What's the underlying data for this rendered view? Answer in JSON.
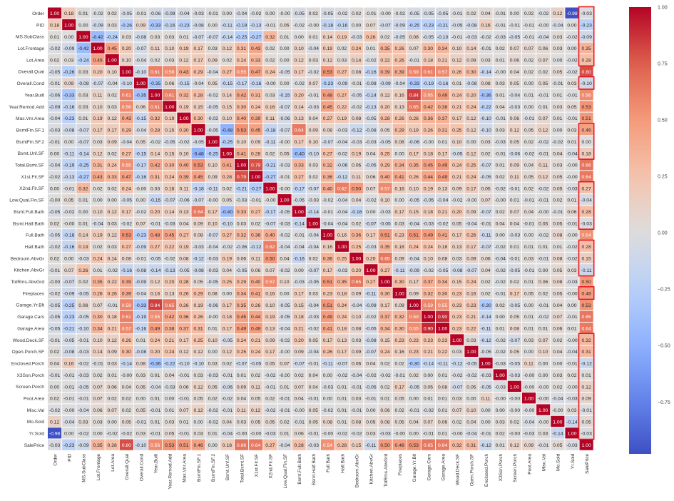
{
  "chart_data": {
    "type": "heatmap",
    "title": "",
    "variables": [
      "Order",
      "PID",
      "MS.SubClass",
      "Lot.Frontage",
      "Lot.Area",
      "Overall.Qual",
      "Overall.Cond",
      "Year.Built",
      "Year.Remod.Add",
      "Mas.Vnr.Area",
      "BsmtFin.SF.1",
      "BsmtFin.SF.2",
      "Bsmt.Unf.SF",
      "Total.Bsmt.SF",
      "X1st.Flr.SF",
      "X2nd.Flr.SF",
      "Low.Qual.Fin.SF",
      "Bsmt.Full.Bath",
      "Bsmt.Half.Bath",
      "Full.Bath",
      "Half.Bath",
      "Bedroom.AbvGr",
      "Kitchen.AbvGr",
      "TotRms.AbvGrd",
      "Fireplaces",
      "Garage.Yr.Blt",
      "Garage.Cars",
      "Garage.Area",
      "Wood.Deck.SF",
      "Open.Porch.SF",
      "Enclosed.Porch",
      "X3Ssn.Porch",
      "Screen.Porch",
      "Pool.Area",
      "Misc.Val",
      "Mo.Sold",
      "Yr.Sold",
      "SalePrice"
    ],
    "symmetric": true,
    "values_lower_triangle": [
      [
        1.0
      ],
      [
        0.18,
        1.0
      ],
      [
        0.01,
        0.0,
        1.0
      ],
      [
        -0.02,
        -0.09,
        -0.42,
        1.0
      ],
      [
        0.02,
        0.03,
        -0.24,
        0.45,
        1.0
      ],
      [
        -0.05,
        -0.26,
        0.03,
        0.2,
        0.1,
        1.0
      ],
      [
        -0.01,
        0.09,
        -0.08,
        -0.07,
        -0.04,
        -0.1,
        1.0
      ],
      [
        -0.06,
        -0.33,
        0.03,
        0.11,
        0.02,
        0.61,
        -0.35,
        1.0
      ],
      [
        -0.09,
        -0.16,
        0.03,
        0.1,
        0.03,
        0.56,
        0.06,
        0.61,
        1.0
      ],
      [
        -0.04,
        -0.23,
        0.01,
        0.19,
        0.12,
        0.43,
        -0.15,
        0.32,
        0.19,
        1.0
      ],
      [
        -0.03,
        -0.08,
        -0.07,
        0.17,
        0.17,
        0.29,
        -0.04,
        0.28,
        0.15,
        0.3,
        1.0
      ],
      [
        -0.01,
        0.0,
        -0.07,
        0.03,
        0.09,
        -0.04,
        0.05,
        -0.02,
        -0.05,
        -0.02,
        -0.05,
        1.0
      ],
      [
        0.0,
        -0.11,
        -0.14,
        0.12,
        0.02,
        0.27,
        -0.15,
        0.14,
        0.15,
        0.1,
        -0.48,
        -0.25,
        1.0
      ],
      [
        -0.04,
        -0.19,
        -0.25,
        0.31,
        0.24,
        0.55,
        -0.17,
        0.42,
        0.3,
        0.4,
        0.53,
        0.1,
        0.41,
        1.0
      ],
      [
        -0.02,
        -0.13,
        -0.27,
        0.43,
        0.33,
        0.47,
        -0.16,
        0.31,
        0.24,
        0.39,
        0.45,
        0.09,
        0.28,
        0.79,
        1.0
      ],
      [
        0.0,
        -0.01,
        0.32,
        0.02,
        0.02,
        0.24,
        -0.0,
        0.03,
        0.16,
        0.11,
        -0.18,
        -0.11,
        0.02,
        -0.21,
        -0.27,
        1.0
      ],
      [
        -0.0,
        0.05,
        0.01,
        0.0,
        0.0,
        -0.05,
        0.0,
        -0.15,
        -0.07,
        -0.06,
        -0.07,
        -0.0,
        0.05,
        -0.03,
        -0.01,
        -0.0,
        1.0
      ],
      [
        -0.05,
        -0.02,
        0.0,
        0.1,
        0.12,
        0.17,
        -0.02,
        0.2,
        0.14,
        0.13,
        0.64,
        0.17,
        -0.4,
        0.33,
        0.27,
        -0.17,
        -0.05,
        1.0
      ],
      [
        0.02,
        -0.0,
        0.01,
        -0.04,
        0.03,
        -0.02,
        0.07,
        -0.01,
        -0.03,
        0.04,
        0.09,
        0.1,
        -0.1,
        0.03,
        0.02,
        -0.07,
        -0.03,
        -0.14,
        1.0
      ],
      [
        -0.05,
        -0.18,
        0.14,
        0.19,
        0.12,
        0.53,
        -0.23,
        0.48,
        0.45,
        0.27,
        0.08,
        -0.07,
        0.27,
        0.32,
        0.36,
        0.4,
        -0.02,
        -0.01,
        -0.04,
        1.0
      ],
      [
        -0.02,
        -0.16,
        0.19,
        0.02,
        0.03,
        0.27,
        -0.09,
        0.27,
        0.22,
        0.19,
        -0.03,
        -0.04,
        -0.02,
        -0.06,
        -0.12,
        0.62,
        -0.04,
        -0.04,
        -0.04,
        0.16,
        1.0
      ],
      [
        0.02,
        0.0,
        -0.03,
        0.24,
        0.14,
        0.08,
        -0.01,
        -0.05,
        -0.02,
        0.08,
        -0.12,
        -0.03,
        0.19,
        0.06,
        0.11,
        0.5,
        0.04,
        -0.16,
        0.02,
        0.36,
        0.25,
        1.0
      ],
      [
        -0.01,
        0.07,
        0.26,
        0.01,
        -0.02,
        -0.16,
        -0.08,
        -0.14,
        -0.13,
        -0.05,
        -0.08,
        -0.03,
        0.04,
        -0.05,
        0.06,
        0.07,
        -0.02,
        0.0,
        -0.07,
        0.17,
        -0.03,
        0.2,
        1.0
      ],
      [
        -0.0,
        -0.07,
        0.02,
        0.35,
        0.22,
        0.39,
        -0.09,
        0.12,
        0.2,
        0.28,
        0.05,
        -0.05,
        0.25,
        0.29,
        0.4,
        0.57,
        0.1,
        -0.03,
        -0.05,
        0.51,
        0.35,
        0.65,
        0.27,
        1.0
      ],
      [
        -0.02,
        -0.09,
        -0.05,
        0.26,
        0.26,
        0.39,
        -0.04,
        0.16,
        0.13,
        0.26,
        0.29,
        0.08,
        0.0,
        0.34,
        0.41,
        0.16,
        0.0,
        0.17,
        0.03,
        0.23,
        0.18,
        0.09,
        -0.11,
        0.3,
        1.0
      ],
      [
        -0.05,
        -0.25,
        0.08,
        0.07,
        -0.01,
        0.59,
        -0.33,
        0.84,
        0.65,
        0.26,
        0.19,
        -0.06,
        0.17,
        0.35,
        0.26,
        0.1,
        -0.05,
        0.15,
        -0.04,
        0.51,
        0.24,
        -0.04,
        -0.09,
        0.17,
        0.09,
        1.0
      ],
      [
        -0.05,
        -0.23,
        -0.05,
        0.3,
        0.18,
        0.61,
        -0.19,
        0.55,
        0.42,
        0.36,
        0.26,
        -0.0,
        0.18,
        0.45,
        0.44,
        0.19,
        -0.05,
        0.18,
        -0.03,
        0.49,
        0.24,
        0.1,
        -0.02,
        0.37,
        0.32,
        0.59,
        1.0
      ],
      [
        -0.05,
        -0.21,
        -0.1,
        0.34,
        0.21,
        0.57,
        -0.16,
        0.49,
        0.38,
        0.37,
        0.31,
        0.01,
        0.17,
        0.49,
        0.49,
        0.13,
        -0.04,
        0.21,
        -0.02,
        0.41,
        0.18,
        0.08,
        -0.05,
        0.34,
        0.3,
        0.55,
        0.9,
        1.0
      ],
      [
        -0.01,
        -0.05,
        -0.01,
        0.1,
        0.12,
        0.26,
        0.01,
        0.24,
        0.21,
        0.17,
        0.25,
        0.1,
        -0.05,
        0.24,
        0.21,
        0.09,
        -0.02,
        0.2,
        0.05,
        0.17,
        0.13,
        0.03,
        -0.08,
        0.15,
        0.23,
        0.23,
        0.23,
        0.23,
        1.0
      ],
      [
        0.02,
        -0.08,
        -0.03,
        0.14,
        0.09,
        0.3,
        -0.08,
        0.2,
        0.24,
        0.12,
        0.12,
        0.0,
        0.12,
        0.25,
        0.24,
        0.17,
        -0.0,
        0.09,
        -0.04,
        0.26,
        0.17,
        0.09,
        -0.07,
        0.24,
        0.16,
        0.23,
        0.21,
        0.22,
        0.03,
        1.0
      ],
      [
        0.04,
        0.16,
        -0.02,
        -0.01,
        0.03,
        -0.14,
        0.08,
        -0.36,
        -0.22,
        -0.1,
        -0.1,
        0.03,
        0.02,
        -0.07,
        -0.05,
        0.05,
        0.07,
        -0.07,
        -0.01,
        -0.11,
        -0.07,
        0.06,
        0.04,
        0.02,
        0.02,
        -0.3,
        -0.14,
        -0.11,
        -0.12,
        -0.05,
        1.0
      ],
      [
        -0.01,
        -0.01,
        -0.03,
        0.02,
        0.01,
        -0.0,
        0.03,
        0.01,
        0.04,
        -0.01,
        0.03,
        -0.03,
        -0.01,
        0.01,
        0.02,
        -0.02,
        -0.0,
        0.02,
        0.04,
        0.0,
        -0.02,
        -0.04,
        -0.02,
        -0.02,
        -0.01,
        0.02,
        0.0,
        0.01,
        -0.02,
        -0.02,
        -0.03,
        1.0
      ],
      [
        0.0,
        -0.01,
        -0.05,
        0.07,
        0.06,
        0.04,
        0.05,
        -0.04,
        -0.03,
        0.06,
        0.12,
        0.05,
        -0.06,
        0.09,
        0.11,
        -0.01,
        0.01,
        0.07,
        0.04,
        -0.03,
        0.01,
        -0.01,
        -0.05,
        0.02,
        0.17,
        -0.05,
        0.05,
        0.08,
        -0.07,
        0.05,
        -0.05,
        -0.03,
        1.0
      ],
      [
        0.02,
        -0.01,
        -0.01,
        0.07,
        0.02,
        0.02,
        0.0,
        0.01,
        0.0,
        -0.01,
        0.05,
        0.02,
        -0.02,
        0.04,
        0.05,
        0.02,
        -0.01,
        0.04,
        -0.01,
        0.0,
        0.01,
        0.03,
        -0.01,
        0.01,
        0.05,
        0.0,
        0.01,
        0.01,
        0.03,
        0.0,
        0.11,
        -0.0,
        -0.0,
        1.0
      ],
      [
        -0.02,
        -0.0,
        -0.04,
        0.06,
        0.07,
        0.02,
        0.05,
        -0.01,
        0.01,
        0.07,
        0.12,
        -0.02,
        -0.01,
        0.11,
        0.12,
        -0.02,
        -0.01,
        -0.0,
        0.05,
        -0.02,
        0.01,
        -0.01,
        0.0,
        0.06,
        0.02,
        -0.01,
        -0.02,
        0.01,
        0.07,
        0.1,
        0.0,
        0.0,
        -0.0,
        -0.0,
        1.0
      ],
      [
        0.12,
        -0.04,
        0.03,
        0.03,
        0.0,
        0.05,
        -0.01,
        0.01,
        0.03,
        0.01,
        0.0,
        -0.02,
        0.04,
        0.03,
        0.05,
        0.05,
        0.02,
        -0.01,
        0.05,
        0.08,
        0.01,
        0.08,
        0.05,
        0.08,
        0.05,
        0.04,
        0.07,
        0.06,
        0.02,
        0.04,
        0.0,
        0.03,
        0.02,
        -0.04,
        -0.0,
        1.0
      ],
      [
        -0.98,
        0.0,
        -0.02,
        0.0,
        -0.02,
        -0.02,
        0.03,
        -0.01,
        0.05,
        -0.01,
        0.03,
        0.01,
        -0.04,
        -0.0,
        -0.0,
        -0.03,
        0.01,
        0.06,
        -0.01,
        -0.0,
        -0.02,
        -0.02,
        0.03,
        -0.03,
        -0.0,
        0.0,
        -0.01,
        0.01,
        -0.0,
        -0.04,
        -0.01,
        0.02,
        -0.0,
        -0.03,
        0.03,
        -0.14,
        1.0
      ],
      [
        -0.03,
        -0.23,
        -0.09,
        0.35,
        0.28,
        0.8,
        -0.1,
        0.56,
        0.53,
        0.51,
        0.46,
        0.0,
        0.18,
        0.66,
        0.64,
        0.27,
        -0.04,
        0.28,
        -0.03,
        0.54,
        0.28,
        0.15,
        -0.11,
        0.5,
        0.48,
        0.53,
        0.65,
        0.64,
        0.32,
        0.31,
        -0.12,
        0.01,
        0.12,
        0.09,
        -0.01,
        0.05,
        -0.03,
        1.0
      ]
    ],
    "colormap": "coolwarm",
    "color_range": [
      -0.98,
      1.0
    ],
    "colorbar": {
      "position": "right",
      "ticks": [
        1.0,
        0.75,
        0.5,
        0.25,
        0.0,
        -0.25,
        -0.5,
        -0.75
      ],
      "tick_labels": [
        "1.00",
        "0.75",
        "0.50",
        "0.25",
        "0.00",
        "−0.25",
        "−0.50",
        "−0.75"
      ]
    },
    "highlight": {
      "column": "SalePrice",
      "color": "#e8141c",
      "row_groups": [
        [
          0,
          4
        ],
        [
          6,
          6
        ],
        [
          10,
          12
        ],
        [
          15,
          18
        ],
        [
          20,
          22
        ],
        [
          24,
          24
        ],
        [
          28,
          36
        ]
      ]
    }
  }
}
